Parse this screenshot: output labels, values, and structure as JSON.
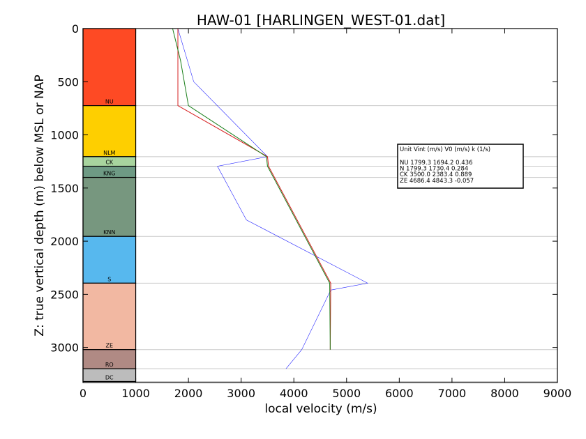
{
  "chart_data": {
    "type": "line",
    "title": "HAW-01 [HARLINGEN_WEST-01.dat]",
    "xlabel": "local velocity (m/s)",
    "ylabel": "Z: true vertical depth (m) below MSL or NAP",
    "xlim": [
      0,
      9000
    ],
    "ylim": [
      3330,
      0
    ],
    "xticks": [
      "0",
      "1000",
      "2000",
      "3000",
      "4000",
      "5000",
      "6000",
      "7000",
      "8000",
      "9000"
    ],
    "yticks": [
      "0",
      "500",
      "1000",
      "1500",
      "2000",
      "2500",
      "3000"
    ],
    "grid": false,
    "units": [
      {
        "name": "NU",
        "top": 0,
        "base": 725,
        "color": "#fe4a24"
      },
      {
        "name": "NLM",
        "top": 725,
        "base": 1205,
        "color": "#fecf00"
      },
      {
        "name": "CK",
        "top": 1205,
        "base": 1295,
        "color": "#a8d49e"
      },
      {
        "name": "KNG",
        "top": 1295,
        "base": 1400,
        "color": "#6e9a84"
      },
      {
        "name": "KNN",
        "top": 1400,
        "base": 1955,
        "color": "#77977f"
      },
      {
        "name": "S",
        "top": 1955,
        "base": 2395,
        "color": "#57b8ee"
      },
      {
        "name": "ZE",
        "top": 2395,
        "base": 3020,
        "color": "#f2b8a2"
      },
      {
        "name": "RO",
        "top": 3020,
        "base": 3200,
        "color": "#b08a84"
      },
      {
        "name": "DC",
        "top": 3200,
        "base": 3320,
        "color": "#bcbcbc"
      }
    ],
    "unit_column_xlim": [
      0,
      1000
    ],
    "boundary_lines": [
      725,
      1205,
      1295,
      1400,
      1955,
      2395,
      3020,
      3200,
      3320
    ],
    "series": [
      {
        "color": "#2424ff",
        "x": [
          1800,
          2100,
          3500,
          2550,
          3100,
          5400,
          4700,
          4150,
          3850
        ],
        "y": [
          0,
          500,
          1205,
          1295,
          1800,
          2395,
          2460,
          3020,
          3200
        ]
      },
      {
        "color": "#d62020",
        "x": [
          1800,
          1800,
          1800,
          3500,
          3520,
          4700,
          4690
        ],
        "y": [
          0,
          500,
          725,
          1205,
          1295,
          2395,
          3020
        ]
      },
      {
        "color": "#1a7f1a",
        "x": [
          1700,
          1850,
          2000,
          3480,
          3500,
          4680,
          4690
        ],
        "y": [
          0,
          300,
          725,
          1205,
          1295,
          2395,
          3020
        ]
      }
    ],
    "legend": {
      "placement": "right",
      "header": "Unit     Vint (m/s)      V0 (m/s)         k (1/s)",
      "rows": [
        "NU       1799.3  1694.2  0.436",
        "N          1799.3  1730.4  0.284",
        "CK       3500.0  2383.4  0.889",
        "ZE        4686.4  4843.3  -0.057"
      ]
    }
  }
}
